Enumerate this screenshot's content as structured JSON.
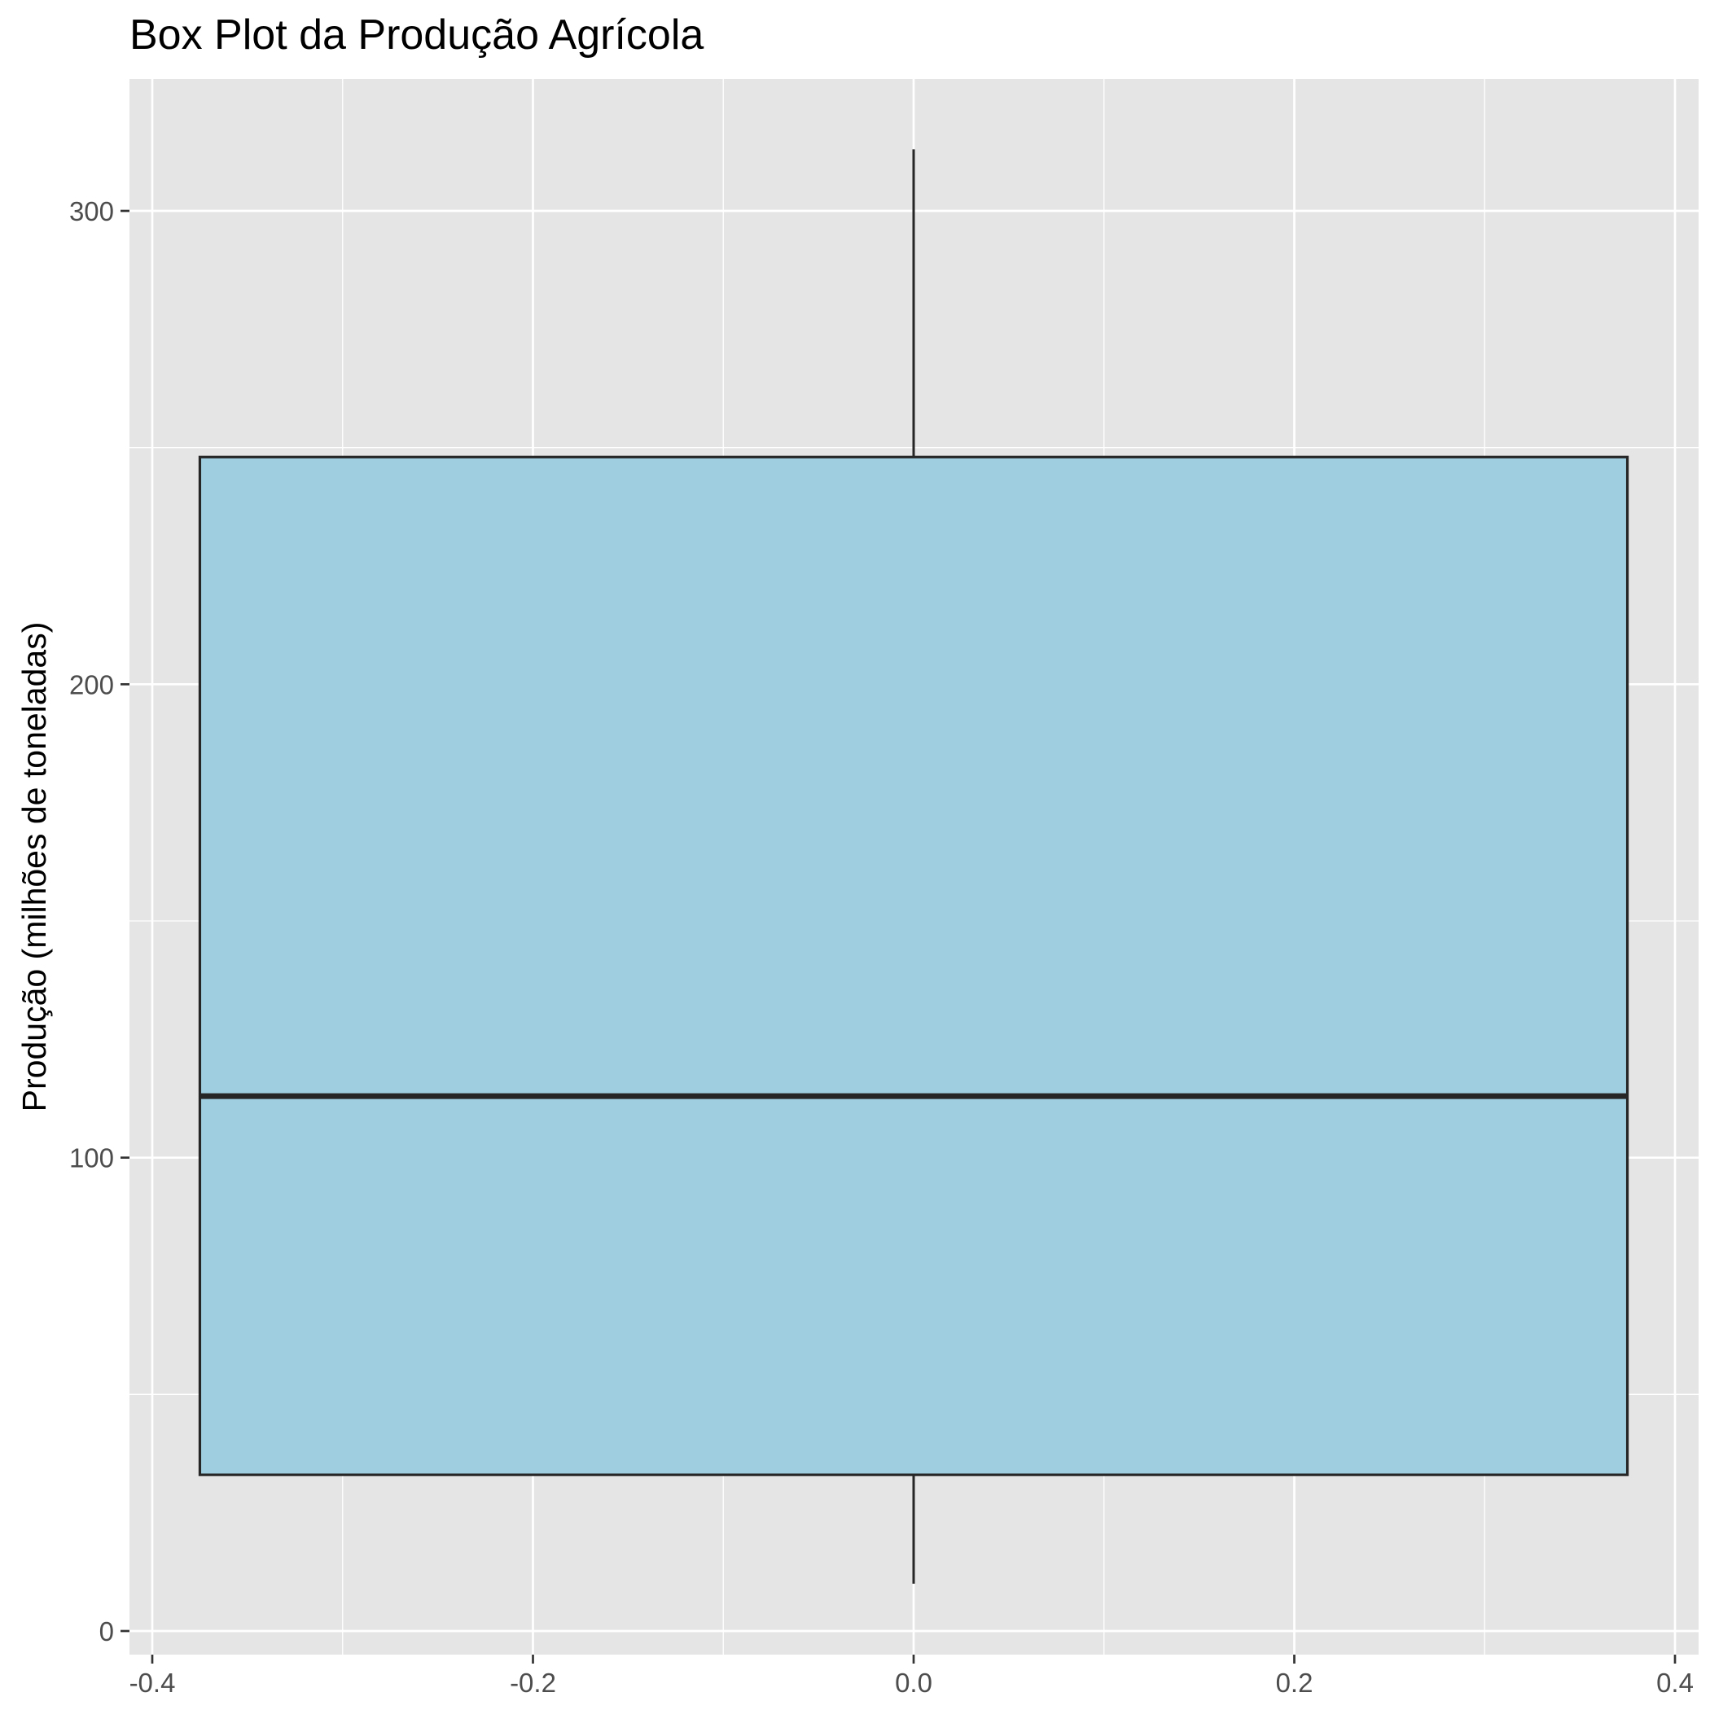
{
  "chart_data": {
    "type": "box",
    "title": "Box Plot da Produção Agrícola",
    "xlabel": "",
    "ylabel": "Produção (milhões de toneladas)",
    "xlim": [
      -0.4,
      0.4
    ],
    "ylim": [
      0,
      320
    ],
    "x_ticks": [
      -0.4,
      -0.2,
      0.0,
      0.2,
      0.4
    ],
    "x_tick_labels": [
      "-0.4",
      "-0.2",
      "0.0",
      "0.2",
      "0.4"
    ],
    "y_ticks": [
      0,
      100,
      200,
      300
    ],
    "y_tick_labels": [
      "0",
      "100",
      "200",
      "300"
    ],
    "grid": true,
    "box": {
      "x": 0.0,
      "half_width": 0.375,
      "whisker_low": 10,
      "q1": 33,
      "median": 113,
      "q3": 248,
      "whisker_high": 313
    },
    "colors": {
      "panel_background": "#e5e5e5",
      "grid": "#ffffff",
      "box_fill": "#9fcee0",
      "box_outline": "#262626"
    }
  }
}
